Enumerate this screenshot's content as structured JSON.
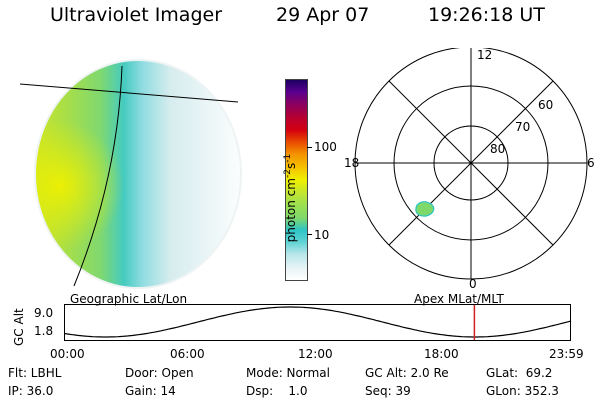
{
  "header": {
    "title": "Ultraviolet Imager",
    "date": "29 Apr 07",
    "time": "19:26:18 UT"
  },
  "colorbar": {
    "unit_base": "photon cm",
    "unit_exp1": "-2",
    "unit_mid": "s",
    "unit_exp2": "-1",
    "tick_100": "100",
    "tick_10": "10",
    "colors": [
      "#ffffff",
      "#e8f4f6",
      "#b8e6ea",
      "#5fd3d3",
      "#2fc4c6",
      "#7fd86a",
      "#9ee04e",
      "#c6e62e",
      "#eef000",
      "#f6c400",
      "#f39200",
      "#e94a00",
      "#d40010",
      "#b80030",
      "#8a0060",
      "#5a0090",
      "#1a0060"
    ]
  },
  "polar": {
    "label_12": "12",
    "label_6": "6",
    "label_18": "18",
    "label_0": "0",
    "lat_60": "60",
    "lat_70": "70",
    "lat_80": "80"
  },
  "labels": {
    "geo": "Geographic Lat/Lon",
    "apex": "Apex MLat/MLT"
  },
  "altitude_plot": {
    "ylabel": "GC Alt",
    "ymax": "9.0",
    "ymin": "1.8",
    "time_ticks": [
      "00:00",
      "06:00",
      "12:00",
      "18:00",
      "23:59"
    ],
    "current_time_fraction": 0.809
  },
  "info": {
    "flt": "Flt: LBHL",
    "ip": "IP: 36.0",
    "door": "Door: Open",
    "gain": "Gain: 14",
    "mode": "Mode: Normal",
    "dsp": "Dsp:    1.0",
    "gcalt": "GC Alt: 2.0 Re",
    "seq": "Seq: 39",
    "glat": "GLat:  69.2",
    "glon": "GLon: 352.3"
  }
}
